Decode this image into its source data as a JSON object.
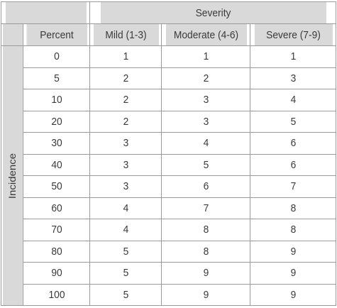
{
  "table": {
    "group_header": "Severity",
    "row_group_label": "Incidence",
    "columns": [
      "Percent",
      "Mild (1-3)",
      "Moderate (4-6)",
      "Severe (7-9)"
    ],
    "rows": [
      [
        "0",
        "1",
        "1",
        "1"
      ],
      [
        "5",
        "2",
        "2",
        "3"
      ],
      [
        "10",
        "2",
        "3",
        "4"
      ],
      [
        "20",
        "2",
        "3",
        "5"
      ],
      [
        "30",
        "3",
        "4",
        "6"
      ],
      [
        "40",
        "3",
        "5",
        "6"
      ],
      [
        "50",
        "3",
        "6",
        "7"
      ],
      [
        "60",
        "4",
        "7",
        "8"
      ],
      [
        "70",
        "4",
        "8",
        "8"
      ],
      [
        "80",
        "5",
        "8",
        "9"
      ],
      [
        "90",
        "5",
        "9",
        "9"
      ],
      [
        "100",
        "5",
        "9",
        "9"
      ]
    ]
  }
}
